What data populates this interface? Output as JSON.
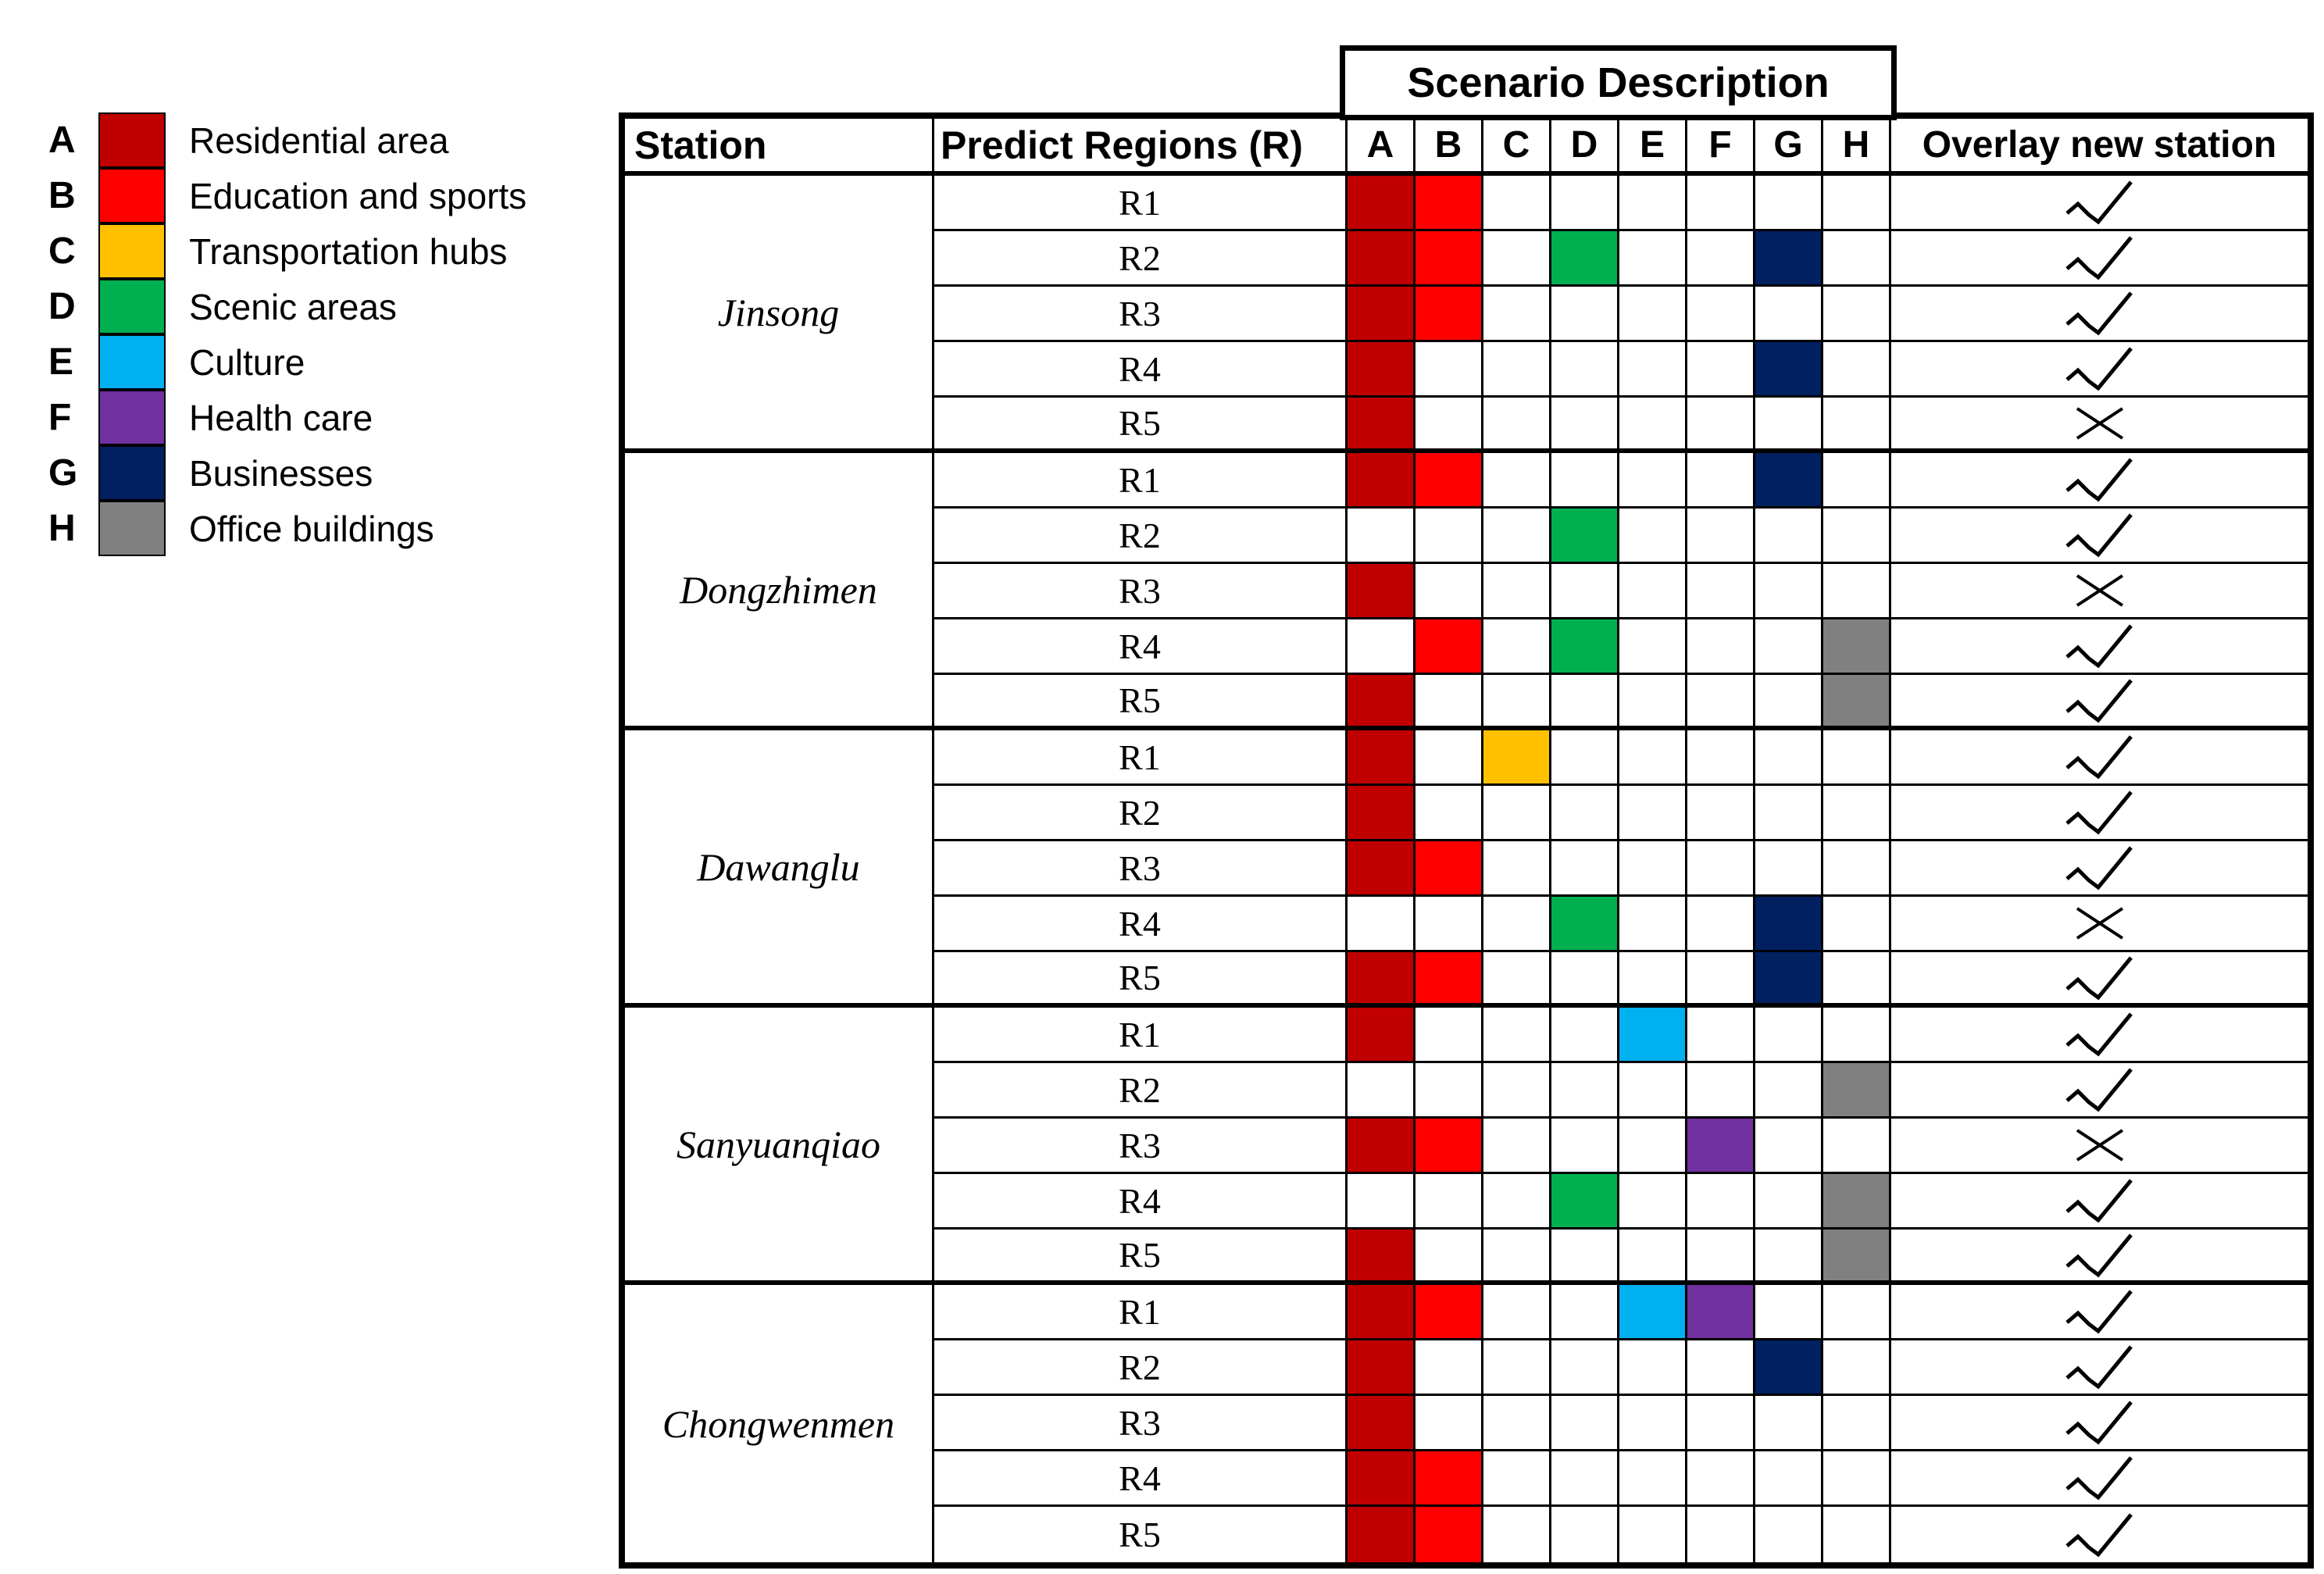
{
  "chart_data": {
    "type": "table",
    "banner": "Scenario Description",
    "headers": {
      "station": "Station",
      "predict_regions": "Predict Regions (R)",
      "scenario_letters": [
        "A",
        "B",
        "C",
        "D",
        "E",
        "F",
        "G",
        "H"
      ],
      "overlay": "Overlay new station"
    },
    "marks": {
      "check": "✓",
      "cross": "✕"
    },
    "legend": [
      {
        "letter": "A",
        "label": "Residential area",
        "color": "#C00000"
      },
      {
        "letter": "B",
        "label": "Education and sports",
        "color": "#FF0000"
      },
      {
        "letter": "C",
        "label": "Transportation hubs",
        "color": "#FFC000"
      },
      {
        "letter": "D",
        "label": "Scenic areas",
        "color": "#00B050"
      },
      {
        "letter": "E",
        "label": "Culture",
        "color": "#00B0F0"
      },
      {
        "letter": "F",
        "label": "Health care",
        "color": "#7030A0"
      },
      {
        "letter": "G",
        "label": "Businesses",
        "color": "#002060"
      },
      {
        "letter": "H",
        "label": "Office buildings",
        "color": "#808080"
      }
    ],
    "stations": [
      {
        "name": "Jinsong",
        "rows": [
          {
            "region": "R1",
            "scenarios": [
              "A",
              "B"
            ],
            "overlay": "check"
          },
          {
            "region": "R2",
            "scenarios": [
              "A",
              "B",
              "D",
              "G"
            ],
            "overlay": "check"
          },
          {
            "region": "R3",
            "scenarios": [
              "A",
              "B"
            ],
            "overlay": "check"
          },
          {
            "region": "R4",
            "scenarios": [
              "A",
              "G"
            ],
            "overlay": "check"
          },
          {
            "region": "R5",
            "scenarios": [
              "A"
            ],
            "overlay": "cross"
          }
        ]
      },
      {
        "name": "Dongzhimen",
        "rows": [
          {
            "region": "R1",
            "scenarios": [
              "A",
              "B",
              "G"
            ],
            "overlay": "check"
          },
          {
            "region": "R2",
            "scenarios": [
              "D"
            ],
            "overlay": "check"
          },
          {
            "region": "R3",
            "scenarios": [
              "A"
            ],
            "overlay": "cross"
          },
          {
            "region": "R4",
            "scenarios": [
              "B",
              "D",
              "H"
            ],
            "overlay": "check"
          },
          {
            "region": "R5",
            "scenarios": [
              "A",
              "H"
            ],
            "overlay": "check"
          }
        ]
      },
      {
        "name": "Dawanglu",
        "rows": [
          {
            "region": "R1",
            "scenarios": [
              "A",
              "C"
            ],
            "overlay": "check"
          },
          {
            "region": "R2",
            "scenarios": [
              "A"
            ],
            "overlay": "check"
          },
          {
            "region": "R3",
            "scenarios": [
              "A",
              "B"
            ],
            "overlay": "check"
          },
          {
            "region": "R4",
            "scenarios": [
              "D",
              "G"
            ],
            "overlay": "cross"
          },
          {
            "region": "R5",
            "scenarios": [
              "A",
              "B",
              "G"
            ],
            "overlay": "check"
          }
        ]
      },
      {
        "name": "Sanyuanqiao",
        "rows": [
          {
            "region": "R1",
            "scenarios": [
              "A",
              "E"
            ],
            "overlay": "check"
          },
          {
            "region": "R2",
            "scenarios": [
              "H"
            ],
            "overlay": "check"
          },
          {
            "region": "R3",
            "scenarios": [
              "A",
              "B",
              "F"
            ],
            "overlay": "cross"
          },
          {
            "region": "R4",
            "scenarios": [
              "D",
              "H"
            ],
            "overlay": "check"
          },
          {
            "region": "R5",
            "scenarios": [
              "A",
              "H"
            ],
            "overlay": "check"
          }
        ]
      },
      {
        "name": "Chongwenmen",
        "rows": [
          {
            "region": "R1",
            "scenarios": [
              "A",
              "B",
              "E",
              "F"
            ],
            "overlay": "check"
          },
          {
            "region": "R2",
            "scenarios": [
              "A",
              "G"
            ],
            "overlay": "check"
          },
          {
            "region": "R3",
            "scenarios": [
              "A"
            ],
            "overlay": "check"
          },
          {
            "region": "R4",
            "scenarios": [
              "A",
              "B"
            ],
            "overlay": "check"
          },
          {
            "region": "R5",
            "scenarios": [
              "A",
              "B"
            ],
            "overlay": "check"
          }
        ]
      }
    ]
  }
}
